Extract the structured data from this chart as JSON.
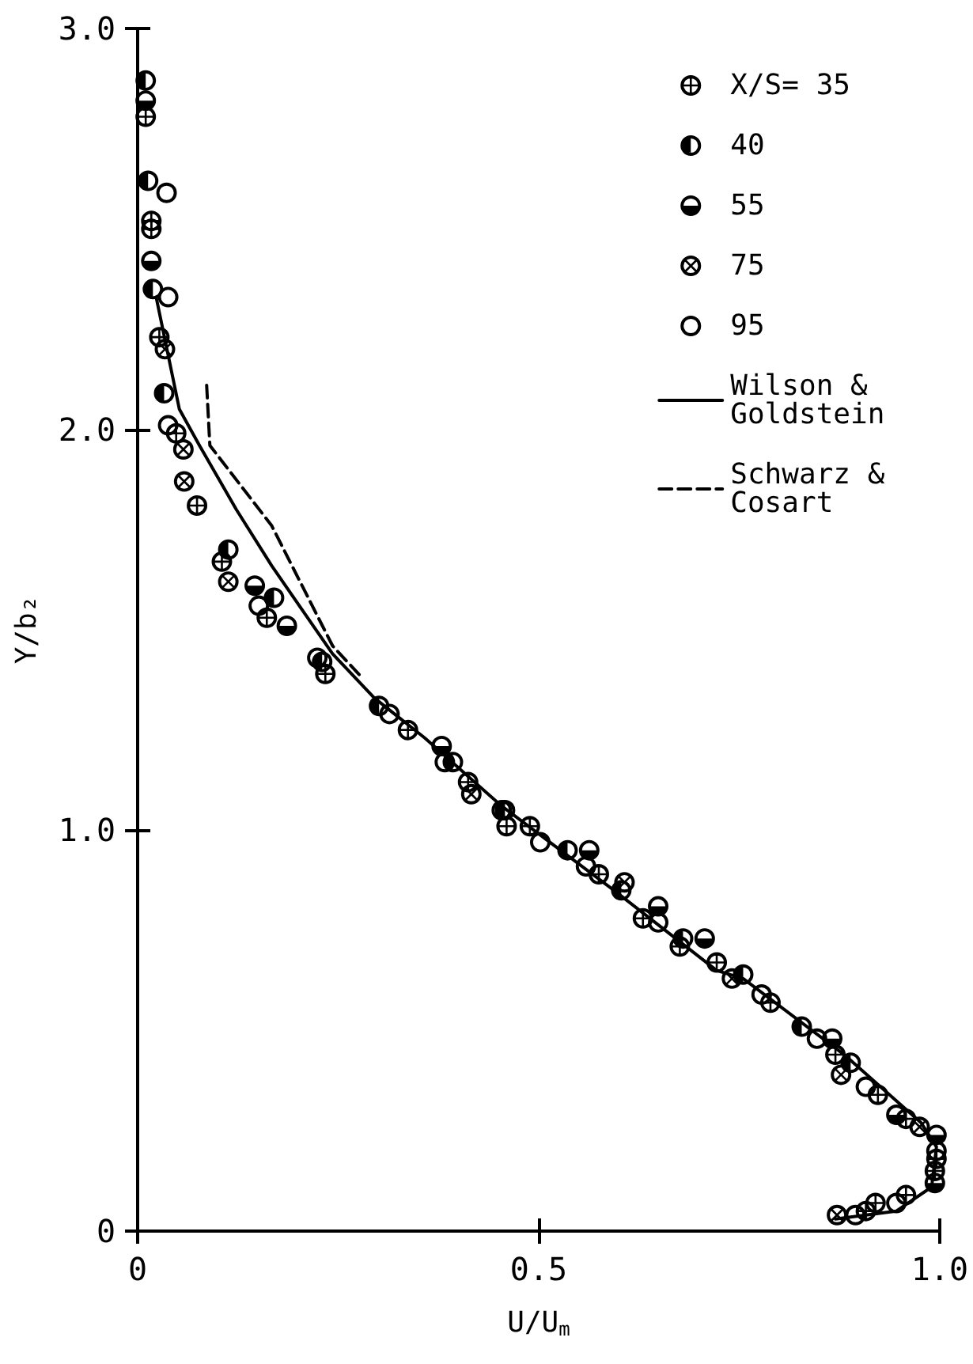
{
  "chart_data": {
    "type": "scatter",
    "xlabel": "U/U$_{m}$",
    "ylabel": "Y/b₂",
    "xlim": [
      0,
      1
    ],
    "xticks": [
      0,
      0.5,
      {
        "value": 1,
        "label": "1.0"
      }
    ],
    "ylim": [
      0,
      3
    ],
    "yticks": [
      0,
      {
        "value": 1,
        "label": "1.0"
      },
      {
        "value": 2,
        "label": "2.0"
      },
      {
        "value": 3,
        "label": "3.0"
      }
    ],
    "grid": false,
    "legend": "top right",
    "marker": "circle",
    "series": [
      {
        "name": "X/S= 35",
        "color": "#000000",
        "x": [
          0.01,
          0.017,
          0.017,
          0.027,
          0.048,
          0.074,
          0.105,
          0.161,
          0.234,
          0.337,
          0.412,
          0.46,
          0.489,
          0.575,
          0.63,
          0.676,
          0.722,
          0.789,
          0.87,
          0.923,
          0.958,
          0.996,
          0.994,
          0.958,
          0.92,
          0.908
        ],
        "values": [
          2.78,
          2.52,
          2.5,
          2.23,
          1.99,
          1.81,
          1.67,
          1.53,
          1.39,
          1.25,
          1.12,
          1.01,
          1.01,
          0.89,
          0.78,
          0.71,
          0.67,
          0.57,
          0.44,
          0.34,
          0.28,
          0.18,
          0.15,
          0.09,
          0.07,
          0.05
        ]
      },
      {
        "name": "40",
        "color": "#000000",
        "x": [
          0.01,
          0.013,
          0.019,
          0.033,
          0.113,
          0.17,
          0.23,
          0.301,
          0.393,
          0.458,
          0.536,
          0.603,
          0.68,
          0.755,
          0.828,
          0.889
        ],
        "values": [
          2.87,
          2.62,
          2.35,
          2.09,
          1.7,
          1.58,
          1.42,
          1.31,
          1.17,
          1.05,
          0.95,
          0.85,
          0.73,
          0.64,
          0.51,
          0.42
        ]
      },
      {
        "name": "55",
        "color": "#000000",
        "x": [
          0.01,
          0.017,
          0.146,
          0.186,
          0.379,
          0.563,
          0.649,
          0.707,
          0.866,
          0.946,
          0.996,
          0.994
        ],
        "values": [
          2.82,
          2.42,
          1.61,
          1.51,
          1.21,
          0.95,
          0.81,
          0.73,
          0.48,
          0.29,
          0.24,
          0.12
        ]
      },
      {
        "name": "75",
        "color": "#000000",
        "x": [
          0.034,
          0.057,
          0.058,
          0.113,
          0.416,
          0.607,
          0.741,
          0.877,
          0.975,
          0.872
        ],
        "values": [
          2.2,
          1.95,
          1.87,
          1.62,
          1.09,
          0.87,
          0.63,
          0.39,
          0.26,
          0.04
        ]
      },
      {
        "name": "95",
        "color": "#000000",
        "x": [
          0.036,
          0.038,
          0.038,
          0.151,
          0.224,
          0.314,
          0.383,
          0.454,
          0.502,
          0.559,
          0.649,
          0.778,
          0.847,
          0.908,
          0.996,
          0.946,
          0.895
        ],
        "values": [
          2.59,
          2.33,
          2.01,
          1.56,
          1.43,
          1.29,
          1.17,
          1.05,
          0.97,
          0.91,
          0.77,
          0.59,
          0.48,
          0.36,
          0.2,
          0.07,
          0.04
        ]
      },
      {
        "name": "Wilson & Goldstein",
        "type": "line",
        "color": "#000000",
        "marker": "none",
        "line_style": "solid",
        "x": [
          0.023,
          0.052,
          0.077,
          0.123,
          0.167,
          0.243,
          0.295,
          0.358,
          0.454,
          0.594,
          0.722,
          0.755,
          0.881,
          0.977,
          0.996,
          0.99,
          0.946,
          0.87
        ],
        "values": [
          2.33,
          2.05,
          1.96,
          1.8,
          1.66,
          1.44,
          1.33,
          1.23,
          1.06,
          0.85,
          0.65,
          0.63,
          0.44,
          0.27,
          0.21,
          0.11,
          0.05,
          0.03
        ]
      },
      {
        "name": "Schwarz & Cosart",
        "type": "line",
        "color": "#000000",
        "marker": "none",
        "line_style": "dashed",
        "x": [
          0.086,
          0.09,
          0.167,
          0.243,
          0.28
        ],
        "values": [
          2.11,
          1.96,
          1.76,
          1.46,
          1.38
        ]
      }
    ]
  }
}
